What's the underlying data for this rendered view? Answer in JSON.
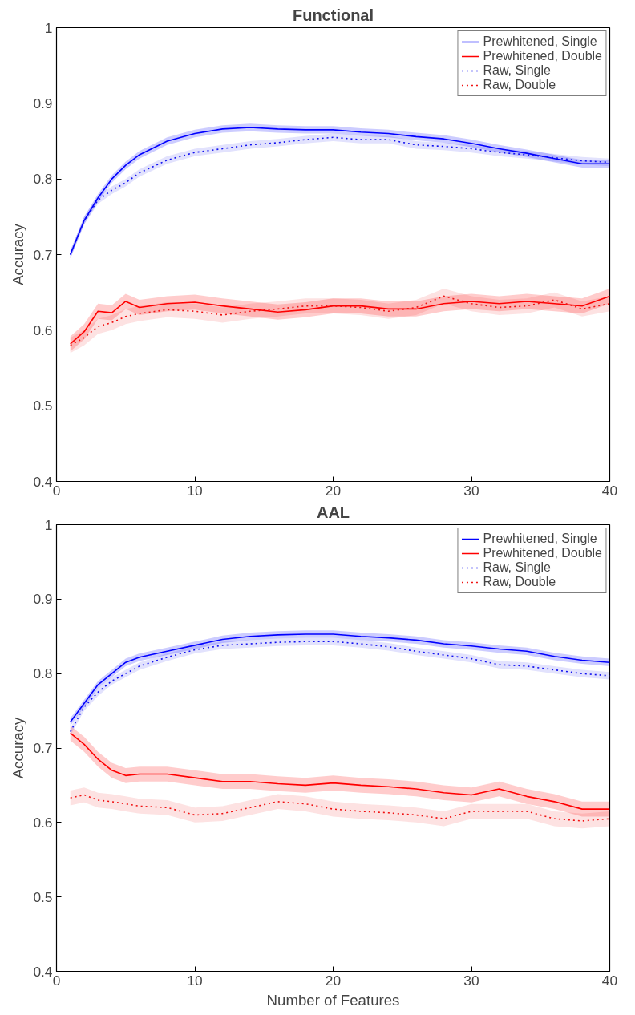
{
  "chart_data": [
    {
      "type": "line",
      "title": "Functional",
      "ylabel": "Accuracy",
      "x": [
        1,
        2,
        3,
        4,
        5,
        6,
        8,
        10,
        12,
        14,
        16,
        18,
        20,
        22,
        24,
        26,
        28,
        30,
        32,
        34,
        36,
        38,
        40
      ],
      "xlim": [
        0,
        40
      ],
      "xticks": [
        0,
        10,
        20,
        30,
        40
      ],
      "ylim": [
        0.4,
        1
      ],
      "yticks": [
        {
          "value": 0.4,
          "label": "0.4"
        },
        {
          "value": 0.5,
          "label": "0.5"
        },
        {
          "value": 0.6,
          "label": "0.6"
        },
        {
          "value": 0.7,
          "label": "0.7"
        },
        {
          "value": 0.8,
          "label": "0.8"
        },
        {
          "value": 0.9,
          "label": "0.9"
        },
        {
          "value": 1,
          "label": "1"
        }
      ],
      "legend": "top right",
      "series": [
        {
          "name": "Prewhitened, Single",
          "color": "#0000ff",
          "line_style": "solid",
          "values": [
            0.7,
            0.745,
            0.775,
            0.8,
            0.818,
            0.832,
            0.85,
            0.86,
            0.866,
            0.868,
            0.866,
            0.865,
            0.865,
            0.862,
            0.86,
            0.856,
            0.853,
            0.847,
            0.84,
            0.834,
            0.827,
            0.82,
            0.82
          ],
          "lower": [
            0.695,
            0.74,
            0.77,
            0.795,
            0.813,
            0.827,
            0.845,
            0.855,
            0.861,
            0.863,
            0.861,
            0.86,
            0.86,
            0.857,
            0.855,
            0.851,
            0.848,
            0.842,
            0.835,
            0.829,
            0.822,
            0.815,
            0.815
          ],
          "upper": [
            0.705,
            0.75,
            0.78,
            0.805,
            0.823,
            0.837,
            0.855,
            0.865,
            0.871,
            0.873,
            0.871,
            0.87,
            0.87,
            0.867,
            0.865,
            0.861,
            0.858,
            0.852,
            0.845,
            0.839,
            0.832,
            0.825,
            0.825
          ]
        },
        {
          "name": "Prewhitened, Double",
          "color": "#ff0000",
          "line_style": "solid",
          "values": [
            0.582,
            0.598,
            0.625,
            0.623,
            0.638,
            0.63,
            0.635,
            0.637,
            0.632,
            0.628,
            0.624,
            0.627,
            0.632,
            0.632,
            0.628,
            0.628,
            0.635,
            0.638,
            0.635,
            0.638,
            0.635,
            0.632,
            0.645
          ],
          "lower": [
            0.572,
            0.588,
            0.615,
            0.613,
            0.628,
            0.62,
            0.625,
            0.627,
            0.622,
            0.618,
            0.614,
            0.617,
            0.622,
            0.622,
            0.618,
            0.618,
            0.625,
            0.628,
            0.625,
            0.628,
            0.625,
            0.622,
            0.635
          ],
          "upper": [
            0.592,
            0.608,
            0.635,
            0.633,
            0.648,
            0.64,
            0.645,
            0.647,
            0.642,
            0.638,
            0.634,
            0.637,
            0.642,
            0.642,
            0.638,
            0.638,
            0.645,
            0.648,
            0.645,
            0.648,
            0.645,
            0.642,
            0.655
          ]
        },
        {
          "name": "Raw, Single",
          "color": "#1010f0",
          "line_style": "dotted",
          "values": [
            0.7,
            0.745,
            0.772,
            0.785,
            0.795,
            0.808,
            0.825,
            0.835,
            0.84,
            0.845,
            0.848,
            0.852,
            0.855,
            0.852,
            0.852,
            0.845,
            0.843,
            0.84,
            0.835,
            0.832,
            0.828,
            0.824,
            0.822
          ],
          "lower": [
            0.695,
            0.74,
            0.767,
            0.78,
            0.79,
            0.803,
            0.82,
            0.83,
            0.835,
            0.84,
            0.843,
            0.847,
            0.85,
            0.847,
            0.847,
            0.84,
            0.838,
            0.835,
            0.83,
            0.827,
            0.823,
            0.819,
            0.817
          ],
          "upper": [
            0.705,
            0.75,
            0.777,
            0.79,
            0.8,
            0.813,
            0.83,
            0.84,
            0.845,
            0.85,
            0.853,
            0.857,
            0.86,
            0.857,
            0.857,
            0.85,
            0.848,
            0.845,
            0.84,
            0.837,
            0.833,
            0.829,
            0.827
          ]
        },
        {
          "name": "Raw, Double",
          "color": "#f01010",
          "line_style": "dotted",
          "values": [
            0.58,
            0.59,
            0.605,
            0.61,
            0.618,
            0.622,
            0.627,
            0.625,
            0.62,
            0.625,
            0.628,
            0.632,
            0.632,
            0.63,
            0.625,
            0.63,
            0.645,
            0.635,
            0.63,
            0.632,
            0.64,
            0.628,
            0.635
          ],
          "lower": [
            0.57,
            0.58,
            0.595,
            0.6,
            0.608,
            0.612,
            0.617,
            0.615,
            0.61,
            0.615,
            0.618,
            0.622,
            0.622,
            0.62,
            0.615,
            0.62,
            0.635,
            0.625,
            0.62,
            0.622,
            0.63,
            0.618,
            0.625
          ],
          "upper": [
            0.59,
            0.6,
            0.615,
            0.62,
            0.628,
            0.632,
            0.637,
            0.635,
            0.63,
            0.635,
            0.638,
            0.642,
            0.642,
            0.64,
            0.635,
            0.64,
            0.655,
            0.645,
            0.64,
            0.642,
            0.65,
            0.638,
            0.645
          ]
        }
      ]
    },
    {
      "type": "line",
      "title": "AAL",
      "xlabel": "Number of Features",
      "ylabel": "Accuracy",
      "x": [
        1,
        2,
        3,
        4,
        5,
        6,
        8,
        10,
        12,
        14,
        16,
        18,
        20,
        22,
        24,
        26,
        28,
        30,
        32,
        34,
        36,
        38,
        40
      ],
      "xlim": [
        0,
        40
      ],
      "xticks": [
        0,
        10,
        20,
        30,
        40
      ],
      "ylim": [
        0.4,
        1
      ],
      "yticks": [
        {
          "value": 0.4,
          "label": "0.4"
        },
        {
          "value": 0.5,
          "label": "0.5"
        },
        {
          "value": 0.6,
          "label": "0.6"
        },
        {
          "value": 0.7,
          "label": "0.7"
        },
        {
          "value": 0.8,
          "label": "0.8"
        },
        {
          "value": 0.9,
          "label": "0.9"
        },
        {
          "value": 1,
          "label": "1"
        }
      ],
      "legend": "top right",
      "series": [
        {
          "name": "Prewhitened, Single",
          "color": "#0000ff",
          "line_style": "solid",
          "values": [
            0.735,
            0.76,
            0.785,
            0.8,
            0.815,
            0.822,
            0.83,
            0.838,
            0.846,
            0.85,
            0.852,
            0.853,
            0.853,
            0.85,
            0.848,
            0.845,
            0.84,
            0.837,
            0.833,
            0.83,
            0.823,
            0.818,
            0.815
          ],
          "lower": [
            0.73,
            0.755,
            0.78,
            0.795,
            0.81,
            0.817,
            0.825,
            0.833,
            0.841,
            0.845,
            0.847,
            0.848,
            0.848,
            0.845,
            0.843,
            0.84,
            0.835,
            0.832,
            0.828,
            0.825,
            0.818,
            0.813,
            0.81
          ],
          "upper": [
            0.74,
            0.765,
            0.79,
            0.805,
            0.82,
            0.827,
            0.835,
            0.843,
            0.851,
            0.855,
            0.857,
            0.858,
            0.858,
            0.855,
            0.853,
            0.85,
            0.845,
            0.842,
            0.838,
            0.835,
            0.828,
            0.823,
            0.82
          ]
        },
        {
          "name": "Prewhitened, Double",
          "color": "#ff0000",
          "line_style": "solid",
          "values": [
            0.72,
            0.705,
            0.685,
            0.67,
            0.663,
            0.665,
            0.665,
            0.66,
            0.655,
            0.655,
            0.652,
            0.65,
            0.653,
            0.65,
            0.648,
            0.645,
            0.64,
            0.637,
            0.645,
            0.635,
            0.628,
            0.618,
            0.618
          ],
          "lower": [
            0.71,
            0.695,
            0.675,
            0.66,
            0.653,
            0.655,
            0.655,
            0.65,
            0.645,
            0.645,
            0.642,
            0.64,
            0.643,
            0.64,
            0.638,
            0.635,
            0.63,
            0.627,
            0.635,
            0.625,
            0.618,
            0.608,
            0.608
          ],
          "upper": [
            0.73,
            0.715,
            0.695,
            0.68,
            0.673,
            0.675,
            0.675,
            0.67,
            0.665,
            0.665,
            0.662,
            0.66,
            0.663,
            0.66,
            0.658,
            0.655,
            0.65,
            0.647,
            0.655,
            0.645,
            0.638,
            0.628,
            0.628
          ]
        },
        {
          "name": "Raw, Single",
          "color": "#1010f0",
          "line_style": "dotted",
          "values": [
            0.722,
            0.755,
            0.775,
            0.79,
            0.8,
            0.81,
            0.822,
            0.832,
            0.838,
            0.84,
            0.842,
            0.843,
            0.843,
            0.84,
            0.836,
            0.83,
            0.825,
            0.82,
            0.812,
            0.81,
            0.805,
            0.8,
            0.797
          ],
          "lower": [
            0.717,
            0.75,
            0.77,
            0.785,
            0.795,
            0.805,
            0.817,
            0.827,
            0.833,
            0.835,
            0.837,
            0.838,
            0.838,
            0.835,
            0.831,
            0.825,
            0.82,
            0.815,
            0.807,
            0.805,
            0.8,
            0.795,
            0.792
          ],
          "upper": [
            0.727,
            0.76,
            0.78,
            0.795,
            0.805,
            0.815,
            0.827,
            0.837,
            0.843,
            0.845,
            0.847,
            0.848,
            0.848,
            0.845,
            0.841,
            0.835,
            0.83,
            0.825,
            0.817,
            0.815,
            0.81,
            0.805,
            0.802
          ]
        },
        {
          "name": "Raw, Double",
          "color": "#f01010",
          "line_style": "dotted",
          "values": [
            0.633,
            0.637,
            0.63,
            0.628,
            0.625,
            0.622,
            0.62,
            0.61,
            0.612,
            0.62,
            0.628,
            0.625,
            0.618,
            0.615,
            0.613,
            0.61,
            0.605,
            0.615,
            0.615,
            0.615,
            0.605,
            0.602,
            0.605
          ],
          "lower": [
            0.623,
            0.627,
            0.62,
            0.618,
            0.615,
            0.612,
            0.61,
            0.6,
            0.602,
            0.61,
            0.618,
            0.615,
            0.608,
            0.605,
            0.603,
            0.6,
            0.595,
            0.605,
            0.605,
            0.605,
            0.595,
            0.592,
            0.595
          ],
          "upper": [
            0.643,
            0.647,
            0.64,
            0.638,
            0.635,
            0.632,
            0.63,
            0.62,
            0.622,
            0.63,
            0.638,
            0.635,
            0.628,
            0.625,
            0.623,
            0.62,
            0.615,
            0.625,
            0.625,
            0.625,
            0.615,
            0.612,
            0.615
          ]
        }
      ]
    }
  ]
}
